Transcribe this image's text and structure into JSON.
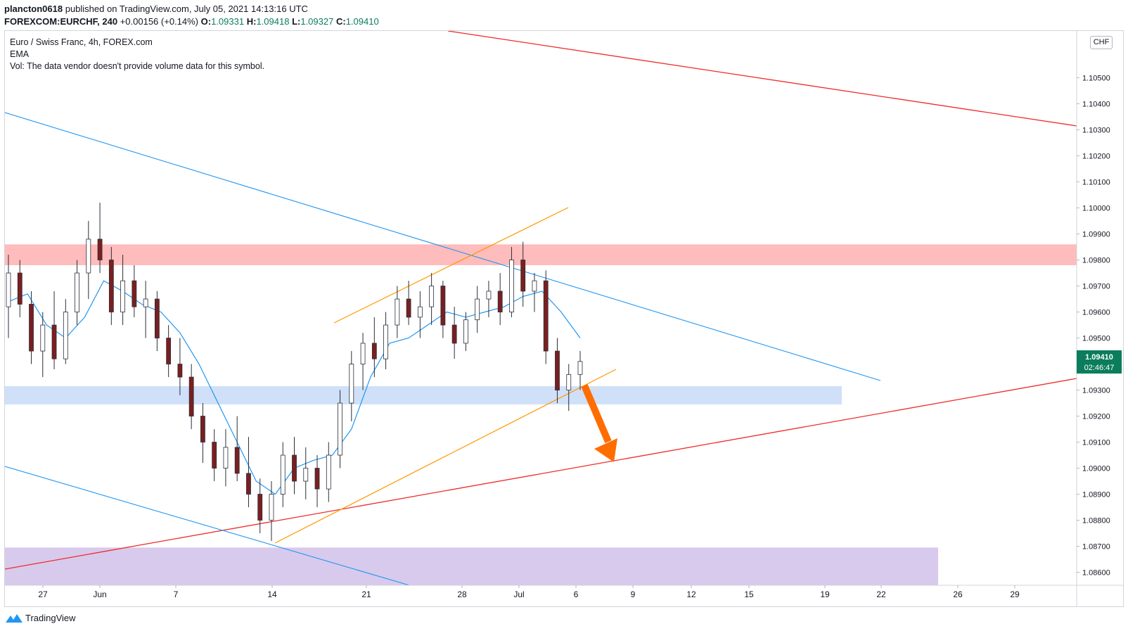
{
  "header": {
    "author": "plancton0618",
    "published_text": "published on TradingView.com, July 05, 2021 14:13:16 UTC",
    "symbol_line": "FOREXCOM:EURCHF, 240",
    "change": "+0.00156 (+0.14%)",
    "o_label": "O:",
    "o_value": "1.09331",
    "h_label": "H:",
    "h_value": "1.09418",
    "l_label": "L:",
    "l_value": "1.09327",
    "c_label": "C:",
    "c_value": "1.09410"
  },
  "legend": {
    "title": "Euro / Swiss Franc, 4h, FOREX.com",
    "ema": "EMA",
    "vol": "Vol: The data vendor doesn't provide volume data for this symbol."
  },
  "currency_badge": "CHF",
  "price_tag": {
    "price": "1.09410",
    "countdown": "02:46:47"
  },
  "footer": {
    "brand": "TradingView"
  },
  "colors": {
    "up": "#ffffff",
    "down": "#7a1f1f",
    "wick": "#2a2e39",
    "ema": "#2196f3",
    "channel": "#2196f3",
    "red_line": "#ef2b2b",
    "orange_line": "#ff9800",
    "arrow": "#ff6d00",
    "resistance_zone": "#ffbcbc",
    "support_zone": "#cfe0f8",
    "purple_zone": "#d8caec",
    "price_tag_bg": "#0b7d5c"
  },
  "chart_data": {
    "type": "candlestick",
    "symbol": "FOREXCOM:EURCHF",
    "timeframe": "240",
    "y_ticks": [
      "1.10500",
      "1.10400",
      "1.10300",
      "1.10200",
      "1.10100",
      "1.10000",
      "1.09900",
      "1.09800",
      "1.09700",
      "1.09600",
      "1.09500",
      "1.09400",
      "1.09300",
      "1.09200",
      "1.09100",
      "1.09000",
      "1.08900",
      "1.08800",
      "1.08700",
      "1.08600"
    ],
    "x_ticks": [
      "27",
      "Jun",
      "7",
      "14",
      "21",
      "28",
      "Jul",
      "6",
      "9",
      "12",
      "15",
      "19",
      "22",
      "26",
      "29"
    ],
    "ylim": [
      1.0855,
      1.1068
    ],
    "current_price": 1.0941,
    "zones": [
      {
        "name": "resistance",
        "from": 1.0978,
        "to": 1.0986
      },
      {
        "name": "support",
        "from": 1.09245,
        "to": 1.09315
      },
      {
        "name": "demand",
        "from": 1.0854,
        "to": 1.08695
      }
    ],
    "ema_approx": [
      1.0964,
      1.0967,
      1.0955,
      1.095,
      1.0958,
      1.0972,
      1.0968,
      1.0963,
      1.096,
      1.0952,
      1.094,
      1.0925,
      1.091,
      1.0895,
      1.089,
      1.09,
      1.0903,
      1.0905,
      1.0915,
      1.0935,
      1.0948,
      1.095,
      1.0955,
      1.096,
      1.0958,
      1.096,
      1.0962,
      1.0966,
      1.0968,
      1.096,
      1.095
    ],
    "candles_approx": [
      [
        1.0962,
        1.0982,
        1.095,
        1.0975
      ],
      [
        1.0975,
        1.098,
        1.0958,
        1.0963
      ],
      [
        1.0963,
        1.0968,
        1.094,
        1.0945
      ],
      [
        1.0945,
        1.096,
        1.0935,
        1.0955
      ],
      [
        1.0955,
        1.0968,
        1.0938,
        1.0942
      ],
      [
        1.0942,
        1.0965,
        1.094,
        1.096
      ],
      [
        1.096,
        1.098,
        1.0955,
        1.0975
      ],
      [
        1.0975,
        1.0995,
        1.0965,
        1.0988
      ],
      [
        1.0988,
        1.1002,
        1.0975,
        1.098
      ],
      [
        1.098,
        1.0985,
        1.0955,
        1.096
      ],
      [
        1.096,
        1.0982,
        1.0955,
        1.0972
      ],
      [
        1.0972,
        1.0978,
        1.0958,
        1.0962
      ],
      [
        1.0962,
        1.0972,
        1.095,
        1.0965
      ],
      [
        1.0965,
        1.0968,
        1.0945,
        1.095
      ],
      [
        1.095,
        1.0955,
        1.0935,
        1.094
      ],
      [
        1.094,
        1.095,
        1.0928,
        1.0935
      ],
      [
        1.0935,
        1.094,
        1.0915,
        1.092
      ],
      [
        1.092,
        1.0925,
        1.0902,
        1.091
      ],
      [
        1.091,
        1.0915,
        1.0895,
        1.09
      ],
      [
        1.09,
        1.0915,
        1.0893,
        1.0908
      ],
      [
        1.0908,
        1.092,
        1.0895,
        1.0898
      ],
      [
        1.0898,
        1.0912,
        1.0885,
        1.089
      ],
      [
        1.089,
        1.0896,
        1.0875,
        1.088
      ],
      [
        1.088,
        1.0895,
        1.0872,
        1.089
      ],
      [
        1.089,
        1.091,
        1.0885,
        1.0905
      ],
      [
        1.0905,
        1.0912,
        1.089,
        1.0895
      ],
      [
        1.0895,
        1.0908,
        1.0888,
        1.09
      ],
      [
        1.09,
        1.0905,
        1.0885,
        1.0892
      ],
      [
        1.0892,
        1.091,
        1.0887,
        1.0905
      ],
      [
        1.0905,
        1.093,
        1.09,
        1.0925
      ],
      [
        1.0925,
        1.0945,
        1.0918,
        1.094
      ],
      [
        1.094,
        1.0952,
        1.093,
        1.0948
      ],
      [
        1.0948,
        1.0958,
        1.0935,
        1.0942
      ],
      [
        1.0942,
        1.096,
        1.0938,
        1.0955
      ],
      [
        1.0955,
        1.097,
        1.095,
        1.0965
      ],
      [
        1.0965,
        1.0972,
        1.0955,
        1.0958
      ],
      [
        1.0958,
        1.0968,
        1.095,
        1.0962
      ],
      [
        1.0962,
        1.0975,
        1.0955,
        1.097
      ],
      [
        1.097,
        1.0972,
        1.095,
        1.0955
      ],
      [
        1.0955,
        1.0962,
        1.0942,
        1.0948
      ],
      [
        1.0948,
        1.096,
        1.0945,
        1.0957
      ],
      [
        1.0957,
        1.097,
        1.0952,
        1.0965
      ],
      [
        1.0965,
        1.0972,
        1.0958,
        1.0968
      ],
      [
        1.0968,
        1.0975,
        1.0955,
        1.096
      ],
      [
        1.096,
        1.0985,
        1.0958,
        1.098
      ],
      [
        1.098,
        1.0987,
        1.0962,
        1.0968
      ],
      [
        1.0968,
        1.0975,
        1.096,
        1.0972
      ],
      [
        1.0972,
        1.0976,
        1.094,
        1.0945
      ],
      [
        1.0945,
        1.095,
        1.0925,
        1.093
      ],
      [
        1.093,
        1.094,
        1.0922,
        1.0936
      ],
      [
        1.0936,
        1.0945,
        1.093,
        1.0941
      ]
    ]
  }
}
